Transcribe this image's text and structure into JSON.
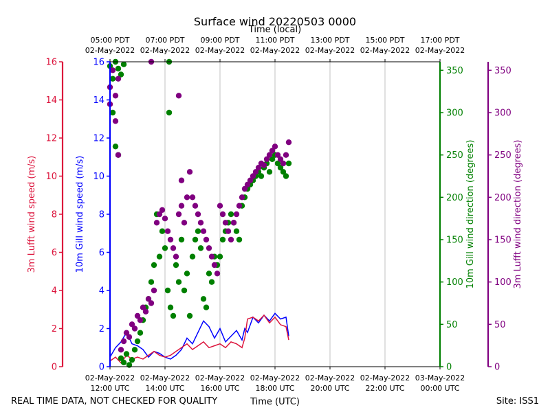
{
  "chart_data": {
    "type": "scatter",
    "title": "Surface wind 20220503 0000",
    "top_axis_label": "Time (local)",
    "xlabel": "Time (UTC)",
    "footer_left": "REAL TIME DATA, NOT CHECKED FOR QUALITY",
    "footer_right": "Site: ISS1",
    "x_range_hours_utc": [
      12,
      24
    ],
    "x_ticks_utc": [
      {
        "h": 12,
        "l1": "02-May-2022",
        "l2": "12:00 UTC"
      },
      {
        "h": 14,
        "l1": "02-May-2022",
        "l2": "14:00 UTC"
      },
      {
        "h": 16,
        "l1": "02-May-2022",
        "l2": "16:00 UTC"
      },
      {
        "h": 18,
        "l1": "02-May-2022",
        "l2": "18:00 UTC"
      },
      {
        "h": 20,
        "l1": "02-May-2022",
        "l2": "20:00 UTC"
      },
      {
        "h": 22,
        "l1": "02-May-2022",
        "l2": "22:00 UTC"
      },
      {
        "h": 24,
        "l1": "03-May-2022",
        "l2": "00:00 UTC"
      }
    ],
    "x_ticks_local": [
      {
        "h": 12,
        "l1": "05:00 PDT",
        "l2": "02-May-2022"
      },
      {
        "h": 14,
        "l1": "07:00 PDT",
        "l2": "02-May-2022"
      },
      {
        "h": 16,
        "l1": "09:00 PDT",
        "l2": "02-May-2022"
      },
      {
        "h": 18,
        "l1": "11:00 PDT",
        "l2": "02-May-2022"
      },
      {
        "h": 20,
        "l1": "13:00 PDT",
        "l2": "02-May-2022"
      },
      {
        "h": 22,
        "l1": "15:00 PDT",
        "l2": "02-May-2022"
      },
      {
        "h": 24,
        "l1": "17:00 PDT",
        "l2": "02-May-2022"
      }
    ],
    "axes": {
      "lufft_speed": {
        "label": "3m Lufft wind speed (m/s)",
        "ylim": [
          0,
          16
        ],
        "ticks": [
          0,
          2,
          4,
          6,
          8,
          10,
          12,
          14,
          16
        ],
        "color": "#dc143c"
      },
      "gill_speed": {
        "label": "10m Gill wind speed (m/s)",
        "ylim": [
          0,
          16
        ],
        "ticks": [
          0,
          2,
          4,
          6,
          8,
          10,
          12,
          14,
          16
        ],
        "color": "#0000ff"
      },
      "gill_dir": {
        "label": "10m Gill wind direction (degrees)",
        "ylim": [
          0,
          360
        ],
        "ticks": [
          0,
          50,
          100,
          150,
          200,
          250,
          300,
          350
        ],
        "color": "#008000"
      },
      "lufft_dir": {
        "label": "3m Lufft wind direction (degrees)",
        "ylim": [
          0,
          360
        ],
        "ticks": [
          0,
          50,
          100,
          150,
          200,
          250,
          300,
          350
        ],
        "color": "#800080"
      }
    },
    "series": [
      {
        "name": "10m Gill wind speed",
        "kind": "line",
        "axis": "gill_speed",
        "color": "#0000ff",
        "points": [
          [
            12.0,
            0.5
          ],
          [
            12.2,
            1.0
          ],
          [
            12.4,
            1.3
          ],
          [
            12.6,
            1.8
          ],
          [
            12.8,
            1.2
          ],
          [
            13.0,
            1.1
          ],
          [
            13.2,
            0.9
          ],
          [
            13.4,
            0.5
          ],
          [
            13.6,
            0.8
          ],
          [
            13.8,
            0.7
          ],
          [
            14.0,
            0.5
          ],
          [
            14.2,
            0.4
          ],
          [
            14.4,
            0.6
          ],
          [
            14.6,
            0.9
          ],
          [
            14.8,
            1.5
          ],
          [
            15.0,
            1.2
          ],
          [
            15.2,
            1.8
          ],
          [
            15.4,
            2.4
          ],
          [
            15.6,
            2.1
          ],
          [
            15.8,
            1.5
          ],
          [
            16.0,
            2.0
          ],
          [
            16.2,
            1.3
          ],
          [
            16.4,
            1.6
          ],
          [
            16.6,
            1.9
          ],
          [
            16.8,
            1.4
          ],
          [
            16.9,
            2.0
          ],
          [
            17.0,
            1.8
          ],
          [
            17.2,
            2.6
          ],
          [
            17.4,
            2.3
          ],
          [
            17.6,
            2.7
          ],
          [
            17.8,
            2.4
          ],
          [
            18.0,
            2.8
          ],
          [
            18.2,
            2.5
          ],
          [
            18.4,
            2.6
          ],
          [
            18.5,
            1.6
          ]
        ]
      },
      {
        "name": "3m Lufft wind speed",
        "kind": "line",
        "axis": "lufft_speed",
        "color": "#dc143c",
        "points": [
          [
            12.0,
            0.3
          ],
          [
            12.2,
            0.5
          ],
          [
            12.4,
            0.2
          ],
          [
            12.6,
            0.6
          ],
          [
            12.8,
            0.4
          ],
          [
            13.0,
            0.5
          ],
          [
            13.2,
            0.4
          ],
          [
            13.4,
            0.6
          ],
          [
            13.6,
            0.8
          ],
          [
            13.8,
            0.6
          ],
          [
            14.0,
            0.5
          ],
          [
            14.2,
            0.6
          ],
          [
            14.4,
            0.8
          ],
          [
            14.6,
            1.0
          ],
          [
            14.8,
            1.2
          ],
          [
            15.0,
            0.9
          ],
          [
            15.2,
            1.1
          ],
          [
            15.4,
            1.3
          ],
          [
            15.6,
            1.0
          ],
          [
            15.8,
            1.1
          ],
          [
            16.0,
            1.2
          ],
          [
            16.2,
            1.0
          ],
          [
            16.4,
            1.3
          ],
          [
            16.6,
            1.2
          ],
          [
            16.8,
            1.0
          ],
          [
            16.9,
            1.5
          ],
          [
            17.0,
            2.5
          ],
          [
            17.2,
            2.6
          ],
          [
            17.4,
            2.4
          ],
          [
            17.6,
            2.7
          ],
          [
            17.8,
            2.3
          ],
          [
            18.0,
            2.6
          ],
          [
            18.2,
            2.2
          ],
          [
            18.4,
            2.1
          ],
          [
            18.5,
            1.4
          ]
        ]
      },
      {
        "name": "10m Gill wind direction",
        "kind": "scatter",
        "axis": "gill_dir",
        "color": "#008000",
        "points": [
          [
            12.0,
            355
          ],
          [
            12.1,
            340
          ],
          [
            12.2,
            360
          ],
          [
            12.3,
            352
          ],
          [
            12.4,
            345
          ],
          [
            12.5,
            357
          ],
          [
            12.1,
            300
          ],
          [
            12.2,
            260
          ],
          [
            12.3,
            250
          ],
          [
            12.4,
            10
          ],
          [
            12.5,
            5
          ],
          [
            12.6,
            15
          ],
          [
            12.7,
            2
          ],
          [
            12.8,
            8
          ],
          [
            12.9,
            20
          ],
          [
            13.0,
            30
          ],
          [
            13.1,
            40
          ],
          [
            13.2,
            55
          ],
          [
            13.3,
            70
          ],
          [
            13.4,
            80
          ],
          [
            13.5,
            100
          ],
          [
            13.6,
            120
          ],
          [
            13.7,
            180
          ],
          [
            13.8,
            130
          ],
          [
            13.9,
            160
          ],
          [
            14.0,
            140
          ],
          [
            14.1,
            90
          ],
          [
            14.2,
            70
          ],
          [
            14.3,
            60
          ],
          [
            14.4,
            120
          ],
          [
            14.5,
            100
          ],
          [
            14.6,
            150
          ],
          [
            14.7,
            90
          ],
          [
            14.8,
            110
          ],
          [
            14.9,
            60
          ],
          [
            15.0,
            130
          ],
          [
            15.1,
            150
          ],
          [
            15.2,
            160
          ],
          [
            15.3,
            140
          ],
          [
            15.4,
            80
          ],
          [
            15.5,
            70
          ],
          [
            15.6,
            110
          ],
          [
            15.7,
            100
          ],
          [
            15.8,
            130
          ],
          [
            15.9,
            120
          ],
          [
            16.0,
            130
          ],
          [
            16.1,
            150
          ],
          [
            16.2,
            160
          ],
          [
            16.3,
            170
          ],
          [
            16.4,
            180
          ],
          [
            16.5,
            170
          ],
          [
            16.6,
            160
          ],
          [
            16.7,
            150
          ],
          [
            16.8,
            190
          ],
          [
            16.9,
            200
          ],
          [
            17.0,
            210
          ],
          [
            17.1,
            215
          ],
          [
            17.2,
            220
          ],
          [
            17.3,
            225
          ],
          [
            17.4,
            230
          ],
          [
            17.5,
            225
          ],
          [
            17.6,
            235
          ],
          [
            17.7,
            240
          ],
          [
            17.8,
            230
          ],
          [
            17.9,
            245
          ],
          [
            18.0,
            250
          ],
          [
            18.1,
            240
          ],
          [
            18.2,
            235
          ],
          [
            18.3,
            230
          ],
          [
            18.4,
            225
          ],
          [
            18.5,
            240
          ],
          [
            14.15,
            360
          ],
          [
            14.15,
            300
          ]
        ]
      },
      {
        "name": "3m Lufft wind direction",
        "kind": "scatter",
        "axis": "lufft_dir",
        "color": "#800080",
        "points": [
          [
            12.0,
            330
          ],
          [
            12.0,
            310
          ],
          [
            12.1,
            350
          ],
          [
            12.2,
            320
          ],
          [
            12.3,
            340
          ],
          [
            12.2,
            290
          ],
          [
            12.3,
            250
          ],
          [
            12.4,
            20
          ],
          [
            12.5,
            30
          ],
          [
            12.6,
            40
          ],
          [
            12.7,
            35
          ],
          [
            12.8,
            50
          ],
          [
            12.9,
            45
          ],
          [
            13.0,
            60
          ],
          [
            13.1,
            55
          ],
          [
            13.2,
            70
          ],
          [
            13.3,
            65
          ],
          [
            13.4,
            80
          ],
          [
            13.5,
            75
          ],
          [
            13.6,
            90
          ],
          [
            13.7,
            170
          ],
          [
            13.8,
            180
          ],
          [
            13.9,
            185
          ],
          [
            14.0,
            175
          ],
          [
            14.1,
            160
          ],
          [
            14.2,
            150
          ],
          [
            14.3,
            140
          ],
          [
            14.4,
            130
          ],
          [
            14.5,
            180
          ],
          [
            14.6,
            190
          ],
          [
            14.7,
            170
          ],
          [
            14.8,
            200
          ],
          [
            14.9,
            230
          ],
          [
            15.0,
            200
          ],
          [
            15.1,
            190
          ],
          [
            15.2,
            180
          ],
          [
            15.3,
            170
          ],
          [
            15.4,
            160
          ],
          [
            15.5,
            150
          ],
          [
            15.6,
            140
          ],
          [
            15.7,
            130
          ],
          [
            15.8,
            120
          ],
          [
            15.9,
            110
          ],
          [
            16.0,
            190
          ],
          [
            16.1,
            180
          ],
          [
            16.2,
            170
          ],
          [
            16.3,
            160
          ],
          [
            16.4,
            150
          ],
          [
            16.5,
            170
          ],
          [
            16.6,
            180
          ],
          [
            16.7,
            190
          ],
          [
            16.8,
            200
          ],
          [
            16.9,
            210
          ],
          [
            17.0,
            215
          ],
          [
            17.1,
            220
          ],
          [
            17.2,
            225
          ],
          [
            17.3,
            230
          ],
          [
            17.4,
            235
          ],
          [
            17.5,
            240
          ],
          [
            17.6,
            238
          ],
          [
            17.7,
            245
          ],
          [
            17.8,
            250
          ],
          [
            17.9,
            255
          ],
          [
            18.0,
            260
          ],
          [
            18.1,
            250
          ],
          [
            18.2,
            245
          ],
          [
            18.3,
            240
          ],
          [
            18.4,
            250
          ],
          [
            18.5,
            265
          ],
          [
            13.5,
            360
          ],
          [
            14.5,
            320
          ],
          [
            14.6,
            220
          ]
        ]
      }
    ]
  }
}
